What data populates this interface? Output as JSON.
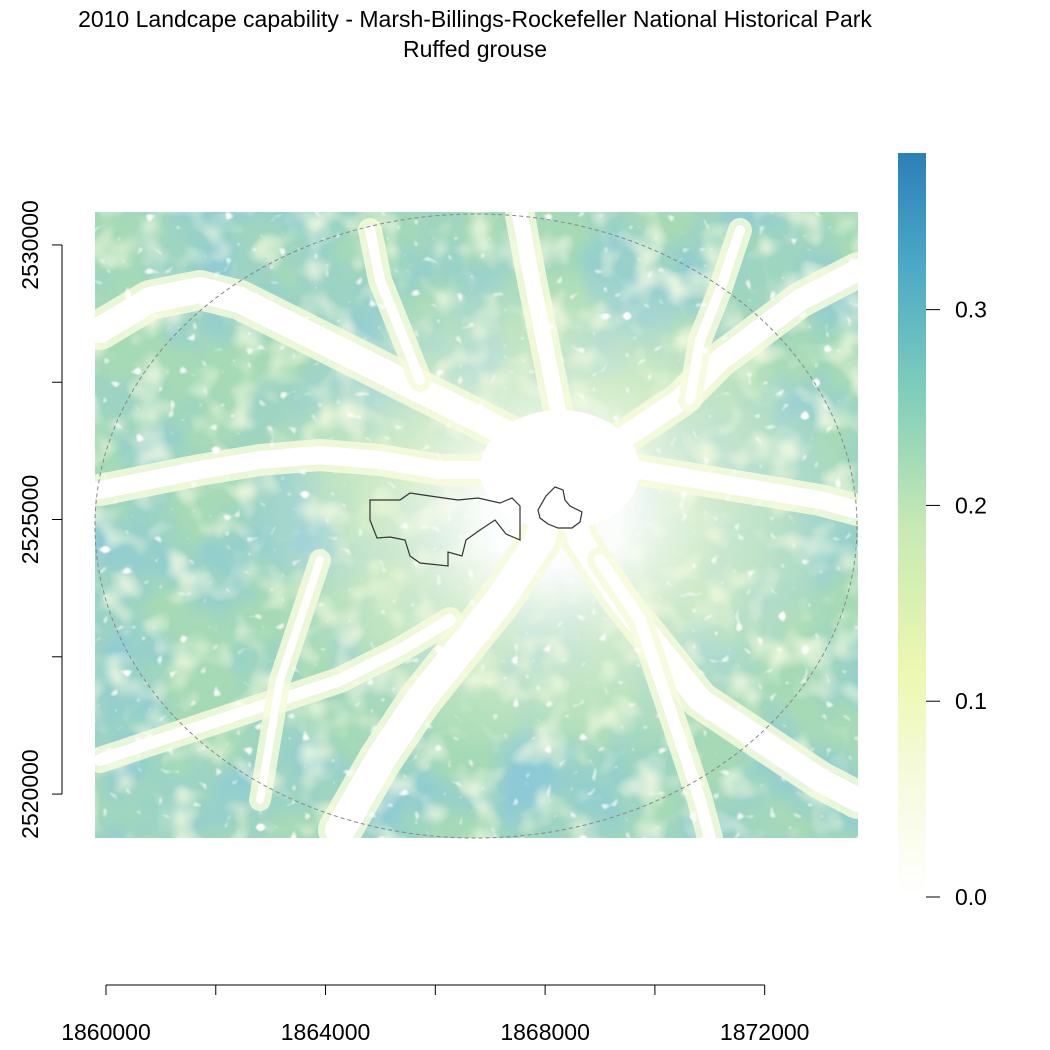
{
  "title": "2010 Landcape capability - Marsh-Billings-Rockefeller National Historical Park",
  "subtitle": "Ruffed grouse",
  "x_axis": {
    "ticks": [
      1860000,
      1862000,
      1864000,
      1866000,
      1868000,
      1870000,
      1872000
    ],
    "tick_labels": [
      "1860000",
      "",
      "1864000",
      "",
      "1868000",
      "",
      "1872000"
    ]
  },
  "y_axis": {
    "ticks": [
      2520000,
      2522500,
      2525000,
      2527500,
      2530000
    ],
    "tick_labels": [
      "2520000",
      "",
      "2525000",
      "",
      "2530000"
    ]
  },
  "legend": {
    "ticks": [
      0.0,
      0.1,
      0.2,
      0.3
    ],
    "tick_labels": [
      "0.0",
      "0.1",
      "0.2",
      "0.3"
    ],
    "range": [
      0,
      0.38
    ],
    "colors": [
      "#ffffff",
      "#f4fad8",
      "#e6f5b3",
      "#c4e6b4",
      "#7fcdbb",
      "#4eb0c5",
      "#2c7fb8"
    ]
  },
  "map": {
    "extent_x": [
      1859800,
      1873700
    ],
    "extent_y": [
      2519200,
      2530600
    ],
    "background_color": "#ffffff",
    "low_color": "#f0f8c8",
    "mid_color": "#a6dab6",
    "high_color": "#3c8fc0",
    "buffer_circle_color": "#888888",
    "park_boundary_color": "#333333"
  }
}
